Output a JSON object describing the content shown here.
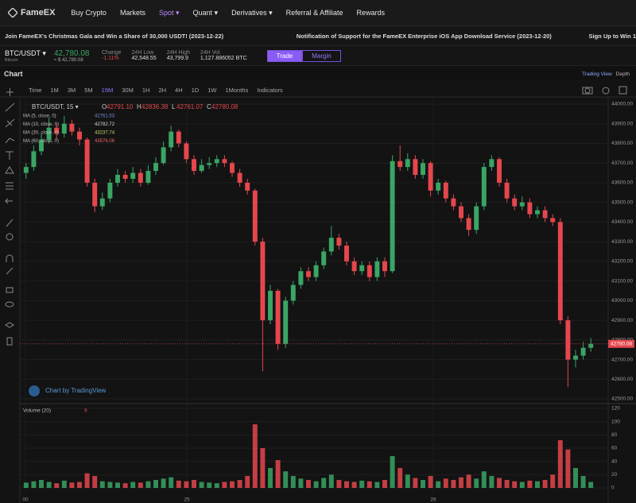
{
  "nav": {
    "logo": "FameEX",
    "items": [
      "Buy Crypto",
      "Markets",
      "Spot ▾",
      "Quant ▾",
      "Derivatives ▾",
      "Referral & Affiliate",
      "Rewards"
    ]
  },
  "announcements": [
    "Join FameEX's Christmas Gala and Win a Share of 30,000 USDT! (2023-12-22)",
    "Notification of Support for the FameEX Enterprise iOS App Download Service (2023-12-20)",
    "Sign Up to Win 1"
  ],
  "ticker": {
    "pair": "BTC/USDT ▾",
    "name": "Bitcoin",
    "price": "42,780.08",
    "price_usd": "≈ $ 42,780.08",
    "stats": [
      {
        "label": "Change",
        "value": "-1.11%"
      },
      {
        "label": "24H Low",
        "value": "42,548.55"
      },
      {
        "label": "24H High",
        "value": "43,799.9"
      },
      {
        "label": "24H Vol.",
        "value": "1,127.886052 BTC"
      }
    ],
    "buttons": [
      "Trade",
      "Margin"
    ]
  },
  "chart_panel": {
    "title": "Chart",
    "views": [
      "Trading View",
      "Depth"
    ],
    "intervals": [
      "Time",
      "1M",
      "3M",
      "5M",
      "15M",
      "30M",
      "1H",
      "2H",
      "4H",
      "1D",
      "1W",
      "1Months"
    ],
    "active_interval": 4,
    "indicators": "Indicators"
  },
  "chart_data": {
    "type": "candlestick",
    "symbol": "BTC/USDT, 15 ▾",
    "legend": [
      {
        "key": "O",
        "value": "42791.10"
      },
      {
        "key": "H",
        "value": "42836.38"
      },
      {
        "key": "L",
        "value": "42761.07"
      },
      {
        "key": "C",
        "value": "42780.08"
      }
    ],
    "ma": [
      {
        "name": "MA (5, close, 0)",
        "value": "42761.53",
        "color": "#7b8ee0"
      },
      {
        "name": "MA (10, close, 0)",
        "value": "42782.72",
        "color": "#d9d9d9"
      },
      {
        "name": "MA (30, close, 0)",
        "value": "43237.74",
        "color": "#c6dc6e"
      },
      {
        "name": "MA (60, close, 0)",
        "value": "43576.06",
        "color": "#f06464"
      }
    ],
    "up_color": "#3aa565",
    "down_color": "#e5474d",
    "candles": [
      [
        43650,
        43700,
        43620,
        43680
      ],
      [
        43680,
        43790,
        43660,
        43760
      ],
      [
        43760,
        43850,
        43740,
        43820
      ],
      [
        43820,
        43930,
        43800,
        43880
      ],
      [
        43880,
        43900,
        43820,
        43850
      ],
      [
        43850,
        43940,
        43830,
        43900
      ],
      [
        43900,
        43920,
        43840,
        43860
      ],
      [
        43860,
        43880,
        43790,
        43820
      ],
      [
        43820,
        43830,
        43580,
        43600
      ],
      [
        43600,
        43620,
        43450,
        43480
      ],
      [
        43480,
        43550,
        43460,
        43520
      ],
      [
        43520,
        43620,
        43500,
        43600
      ],
      [
        43600,
        43670,
        43580,
        43640
      ],
      [
        43640,
        43660,
        43600,
        43620
      ],
      [
        43620,
        43680,
        43600,
        43650
      ],
      [
        43650,
        43670,
        43580,
        43600
      ],
      [
        43600,
        43690,
        43590,
        43660
      ],
      [
        43660,
        43730,
        43640,
        43700
      ],
      [
        43700,
        43810,
        43690,
        43780
      ],
      [
        43780,
        43890,
        43760,
        43860
      ],
      [
        43860,
        43870,
        43780,
        43800
      ],
      [
        43800,
        43810,
        43700,
        43720
      ],
      [
        43720,
        43740,
        43640,
        43660
      ],
      [
        43660,
        43720,
        43650,
        43690
      ],
      [
        43690,
        43730,
        43670,
        43700
      ],
      [
        43700,
        43740,
        43680,
        43720
      ],
      [
        43720,
        43740,
        43680,
        43700
      ],
      [
        43700,
        43710,
        43630,
        43650
      ],
      [
        43650,
        43670,
        43580,
        43600
      ],
      [
        43600,
        43620,
        43540,
        43560
      ],
      [
        43560,
        43570,
        43280,
        43300
      ],
      [
        43300,
        43320,
        42640,
        42900
      ],
      [
        42900,
        43080,
        42880,
        43050
      ],
      [
        43050,
        43060,
        42750,
        42780
      ],
      [
        42780,
        43020,
        42760,
        43000
      ],
      [
        43000,
        43100,
        42980,
        43080
      ],
      [
        43080,
        43170,
        43060,
        43150
      ],
      [
        43150,
        43170,
        43100,
        43120
      ],
      [
        43120,
        43200,
        43100,
        43180
      ],
      [
        43180,
        43270,
        43160,
        43250
      ],
      [
        43250,
        43380,
        43230,
        43320
      ],
      [
        43320,
        43340,
        43260,
        43280
      ],
      [
        43280,
        43300,
        43180,
        43200
      ],
      [
        43200,
        43220,
        43130,
        43150
      ],
      [
        43150,
        43200,
        43130,
        43180
      ],
      [
        43180,
        43200,
        43100,
        43120
      ],
      [
        43120,
        43220,
        43100,
        43200
      ],
      [
        43200,
        43220,
        43120,
        43150
      ],
      [
        43150,
        43740,
        43140,
        43710
      ],
      [
        43710,
        43790,
        43660,
        43680
      ],
      [
        43680,
        43750,
        43660,
        43720
      ],
      [
        43720,
        43740,
        43620,
        43640
      ],
      [
        43640,
        43720,
        43620,
        43700
      ],
      [
        43700,
        43710,
        43530,
        43560
      ],
      [
        43560,
        43620,
        43540,
        43600
      ],
      [
        43600,
        43610,
        43500,
        43520
      ],
      [
        43520,
        43540,
        43460,
        43480
      ],
      [
        43480,
        43500,
        43400,
        43420
      ],
      [
        43420,
        43440,
        43330,
        43360
      ],
      [
        43360,
        43500,
        43340,
        43480
      ],
      [
        43480,
        43700,
        43460,
        43680
      ],
      [
        43680,
        43740,
        43660,
        43720
      ],
      [
        43720,
        43730,
        43580,
        43600
      ],
      [
        43600,
        43620,
        43500,
        43520
      ],
      [
        43520,
        43540,
        43460,
        43480
      ],
      [
        43480,
        43530,
        43460,
        43500
      ],
      [
        43500,
        43520,
        43420,
        43440
      ],
      [
        43440,
        43480,
        43420,
        43460
      ],
      [
        43460,
        43480,
        43400,
        43420
      ],
      [
        43420,
        43440,
        43380,
        43400
      ],
      [
        43400,
        43420,
        42880,
        42900
      ],
      [
        42900,
        42920,
        42560,
        42700
      ],
      [
        42700,
        42750,
        42660,
        42720
      ],
      [
        42720,
        42790,
        42700,
        42760
      ],
      [
        42760,
        42810,
        42740,
        42780
      ]
    ],
    "ylim": [
      42500,
      44000
    ],
    "yticks": [
      {
        "value": 42500,
        "label": "42500.00"
      },
      {
        "value": 42600,
        "label": "42600.00"
      },
      {
        "value": 42700,
        "label": "42700.00"
      },
      {
        "value": 42800,
        "label": "42800.00"
      },
      {
        "value": 42900,
        "label": "42900.00"
      },
      {
        "value": 43000,
        "label": "43000.00"
      },
      {
        "value": 43100,
        "label": "43100.00"
      },
      {
        "value": 43200,
        "label": "43200.00"
      },
      {
        "value": 43300,
        "label": "43300.00"
      },
      {
        "value": 43400,
        "label": "43400.00"
      },
      {
        "value": 43500,
        "label": "43500.00"
      },
      {
        "value": 43600,
        "label": "43600.00"
      },
      {
        "value": 43700,
        "label": "43700.00"
      },
      {
        "value": 43800,
        "label": "43800.00"
      },
      {
        "value": 43900,
        "label": "43900.00"
      },
      {
        "value": 44000,
        "label": "44000.00"
      }
    ],
    "last_price": 42780.08,
    "volume": {
      "title": "Volume (20)",
      "last": "9",
      "ylim": [
        0,
        120
      ],
      "yticks": [
        0,
        20,
        40,
        60,
        80,
        100,
        120
      ],
      "values": [
        8,
        10,
        12,
        9,
        7,
        11,
        8,
        9,
        22,
        18,
        10,
        9,
        8,
        7,
        9,
        8,
        10,
        12,
        14,
        16,
        11,
        10,
        12,
        9,
        8,
        7,
        9,
        10,
        12,
        18,
        96,
        60,
        30,
        42,
        25,
        18,
        14,
        12,
        10,
        15,
        20,
        12,
        10,
        9,
        11,
        10,
        9,
        12,
        48,
        30,
        20,
        15,
        12,
        18,
        10,
        14,
        12,
        16,
        20,
        14,
        25,
        18,
        15,
        12,
        10,
        9,
        11,
        10,
        12,
        20,
        72,
        58,
        30,
        18,
        9
      ]
    },
    "x_labels": [
      "00",
      "25",
      "26"
    ],
    "watermark": "Chart by TradingView"
  }
}
